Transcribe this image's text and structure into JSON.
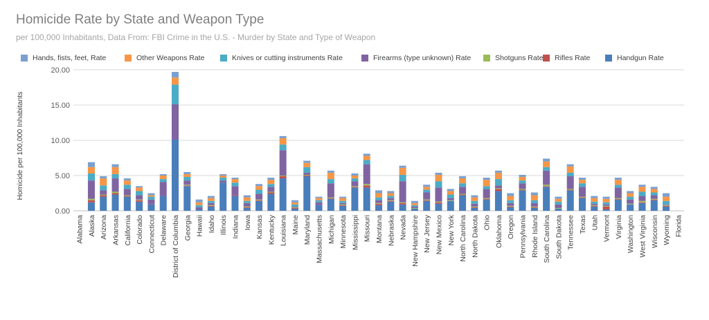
{
  "chart_data": {
    "type": "bar",
    "stacked": true,
    "title": "Homicide Rate by State and Weapon Type",
    "subtitle": "per 100,000 Inhabitants, Data From: FBI Crime in the U.S. - Murder by State and Type of Weapon",
    "ylabel": "Homicide per 100,000 Inhabitants",
    "xlabel": "",
    "ylim": [
      0,
      20
    ],
    "yticks": [
      "0.00",
      "5.00",
      "10.00",
      "15.00",
      "20.00"
    ],
    "grid": true,
    "legend_position": "top",
    "categories": [
      "Alabama",
      "Alaska",
      "Arizona",
      "Arkansas",
      "California",
      "Colorado",
      "Connecticut",
      "Delaware",
      "District of Columbia",
      "Georgia",
      "Hawaii",
      "Idaho",
      "Illinois",
      "Indiana",
      "Iowa",
      "Kansas",
      "Kentucky",
      "Louisiana",
      "Maine",
      "Maryland",
      "Massachusetts",
      "Michigan",
      "Minnesota",
      "Mississippi",
      "Missouri",
      "Montana",
      "Nebraska",
      "Nevada",
      "New Hampshire",
      "New Jersey",
      "New Mexico",
      "New York",
      "North Carolina",
      "North Dakota",
      "Ohio",
      "Oklahoma",
      "Oregon",
      "Pennsylvania",
      "Rhode Island",
      "South Carolina",
      "South Dakota",
      "Tennessee",
      "Texas",
      "Utah",
      "Vermont",
      "Virginia",
      "Washington",
      "West Virginia",
      "Wisconsin",
      "Wyoming",
      "Florida"
    ],
    "series": [
      {
        "name": "Handgun Rate",
        "color": "#4a7ebb",
        "values": [
          0,
          1.2,
          2.0,
          2.3,
          2.0,
          1.3,
          0.9,
          2.1,
          10.1,
          3.5,
          0.2,
          0.6,
          4.0,
          2.1,
          0.4,
          1.4,
          2.4,
          4.6,
          0.3,
          4.9,
          0.8,
          1.7,
          0.7,
          3.3,
          3.3,
          0.8,
          1.3,
          0.9,
          0.3,
          1.4,
          1.0,
          1.4,
          2.2,
          0.4,
          1.6,
          2.8,
          0.5,
          2.9,
          0.4,
          3.4,
          0.3,
          2.9,
          1.8,
          0.6,
          0.2,
          1.6,
          0.9,
          1.1,
          1.5,
          0.6,
          0
        ]
      },
      {
        "name": "Rifles Rate",
        "color": "#c0504d",
        "values": [
          0,
          0.3,
          0.2,
          0.2,
          0.1,
          0.2,
          0.0,
          0.0,
          0.0,
          0.1,
          0.0,
          0.1,
          0.0,
          0.1,
          0.1,
          0.1,
          0.2,
          0.3,
          0.1,
          0.1,
          0.0,
          0.1,
          0.1,
          0.1,
          0.3,
          0.2,
          0.1,
          0.2,
          0.0,
          0.1,
          0.2,
          0.0,
          0.1,
          0.1,
          0.1,
          0.3,
          0.1,
          0.1,
          0.1,
          0.1,
          0.0,
          0.1,
          0.1,
          0.1,
          0.4,
          0.1,
          0.0,
          0.1,
          0.1,
          0.1,
          0
        ]
      },
      {
        "name": "Shotguns Rate",
        "color": "#9bbb59",
        "values": [
          0,
          0.2,
          0.1,
          0.2,
          0.1,
          0.1,
          0.0,
          0.0,
          0.0,
          0.1,
          0.0,
          0.1,
          0.0,
          0.0,
          0.1,
          0.1,
          0.1,
          0.1,
          0.1,
          0.1,
          0.0,
          0.1,
          0.1,
          0.1,
          0.2,
          0.1,
          0.1,
          0.1,
          0.1,
          0.1,
          0.1,
          0.1,
          0.1,
          0.1,
          0.1,
          0.1,
          0.1,
          0.1,
          0.1,
          0.2,
          0.1,
          0.1,
          0.1,
          0.1,
          0.1,
          0.1,
          0.1,
          0.2,
          0.1,
          0.1,
          0
        ]
      },
      {
        "name": "Firearms (type unknown) Rate",
        "color": "#8064a2",
        "values": [
          0,
          2.6,
          0.6,
          1.9,
          0.9,
          0.6,
          0.7,
          2.0,
          5.0,
          0.6,
          0.3,
          0.3,
          0.3,
          1.3,
          0.5,
          0.8,
          0.7,
          3.6,
          0.1,
          0.3,
          0.4,
          2.0,
          0.2,
          0.7,
          2.8,
          0.4,
          0.3,
          3.0,
          0.2,
          1.0,
          2.0,
          0.3,
          1.0,
          0.4,
          1.3,
          0.4,
          0.4,
          0.8,
          0.5,
          2.0,
          0.5,
          1.8,
          1.4,
          0.2,
          0.2,
          1.5,
          0.6,
          0.7,
          0.5,
          0.1,
          0
        ]
      },
      {
        "name": "Knives or cutting instruments Rate",
        "color": "#4bacc6",
        "values": [
          0,
          1.0,
          0.7,
          0.6,
          0.6,
          0.6,
          0.4,
          0.4,
          2.8,
          0.5,
          0.3,
          0.3,
          0.4,
          0.5,
          0.3,
          0.6,
          0.4,
          0.8,
          0.3,
          0.8,
          0.3,
          0.6,
          0.3,
          0.4,
          0.6,
          0.4,
          0.3,
          0.9,
          0.2,
          0.4,
          0.9,
          0.5,
          0.5,
          0.4,
          0.4,
          0.9,
          0.4,
          0.4,
          0.4,
          0.5,
          0.4,
          0.5,
          0.5,
          0.3,
          0.3,
          0.4,
          0.4,
          0.6,
          0.4,
          0.5,
          0
        ]
      },
      {
        "name": "Other Weapons Rate",
        "color": "#f79646",
        "values": [
          0,
          0.9,
          1.0,
          1.0,
          0.6,
          0.5,
          0.2,
          0.5,
          1.0,
          0.4,
          0.4,
          0.4,
          0.3,
          0.5,
          0.5,
          0.5,
          0.6,
          0.9,
          0.3,
          0.6,
          0.3,
          0.9,
          0.4,
          0.4,
          0.6,
          0.6,
          0.4,
          1.0,
          0.3,
          0.4,
          0.9,
          0.5,
          0.7,
          0.5,
          0.9,
          0.9,
          0.6,
          0.5,
          0.7,
          0.8,
          0.4,
          0.9,
          0.5,
          0.5,
          0.5,
          0.7,
          0.5,
          0.7,
          0.5,
          0.6,
          0
        ]
      },
      {
        "name": "Hands, fists, feet, Rate",
        "color": "#7ba0d0",
        "values": [
          0,
          0.7,
          0.3,
          0.4,
          0.3,
          0.2,
          0.3,
          0.2,
          0.8,
          0.3,
          0.4,
          0.3,
          0.2,
          0.2,
          0.3,
          0.3,
          0.3,
          0.3,
          0.3,
          0.3,
          0.2,
          0.3,
          0.2,
          0.3,
          0.3,
          0.4,
          0.3,
          0.3,
          0.3,
          0.3,
          0.3,
          0.3,
          0.3,
          0.3,
          0.3,
          0.3,
          0.4,
          0.3,
          0.4,
          0.4,
          0.3,
          0.3,
          0.3,
          0.3,
          0.3,
          0.3,
          0.3,
          0.3,
          0.3,
          0.5,
          0
        ]
      }
    ]
  }
}
